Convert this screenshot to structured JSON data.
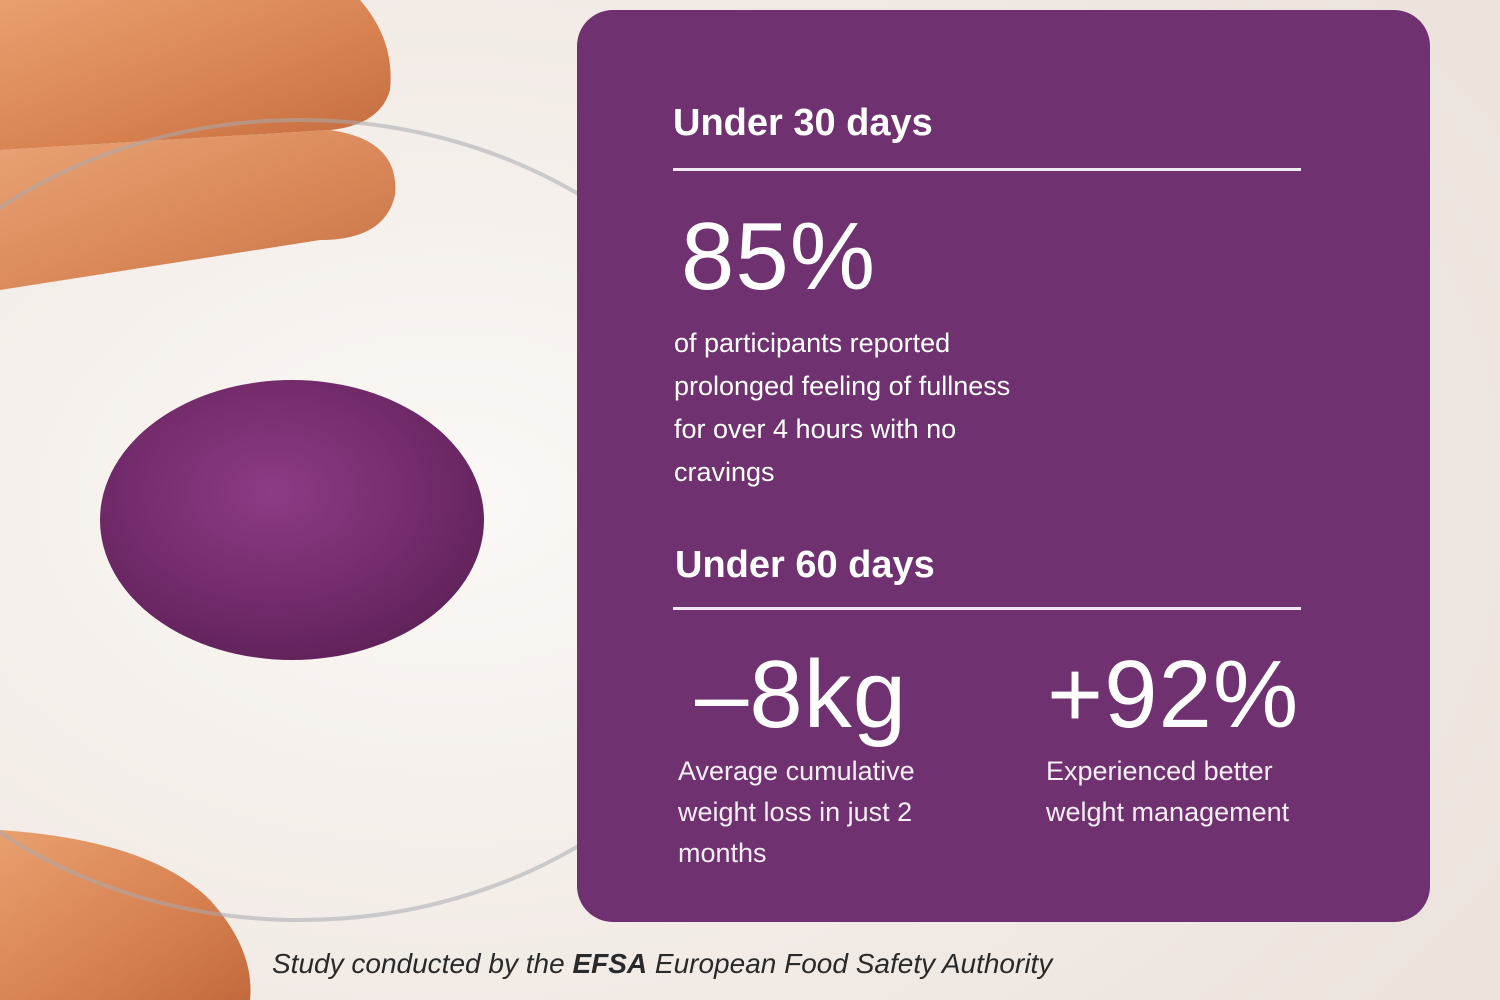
{
  "colors": {
    "card": "#6f316f",
    "background": "#f3ede8",
    "powder": "#7a2f72"
  },
  "section1": {
    "heading": "Under 30 days",
    "stat": "85%",
    "description_lines": [
      "of participants reported",
      "prolonged feeling of fullness",
      "for over 4 hours with no",
      "cravings"
    ]
  },
  "section2": {
    "heading": "Under 60 days",
    "stats": [
      {
        "value": "–8kg",
        "description_lines": [
          "Average cumulative",
          "weight loss in just 2",
          "months"
        ]
      },
      {
        "value": "+92%",
        "description_lines": [
          "Experienced better",
          "welght management"
        ]
      }
    ]
  },
  "footer": {
    "prefix": "Study conducted by the ",
    "org_abbr": "EFSA",
    "suffix": " European Food Safety Authority"
  }
}
